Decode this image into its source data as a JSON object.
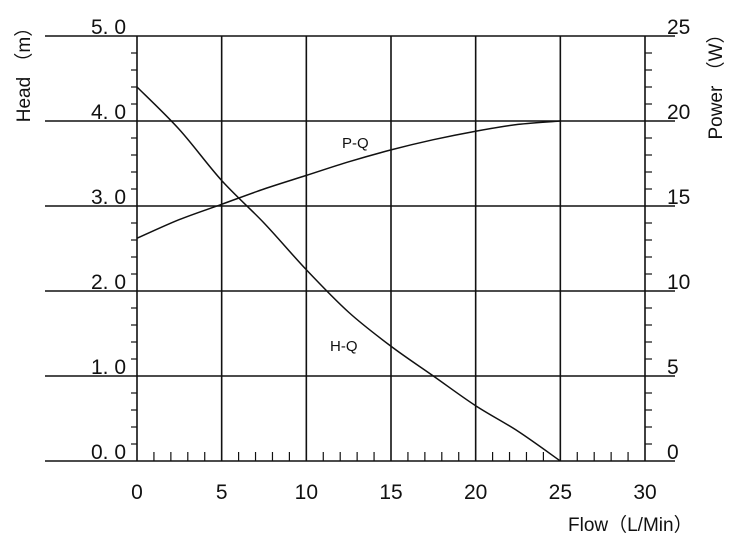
{
  "chart_data": {
    "type": "line",
    "xlabel": "Flow（L/Min）",
    "ylabel_left": "Head （m）",
    "ylabel_right": "Power （W）",
    "xlim": [
      0,
      30
    ],
    "ylim_left": [
      0,
      5
    ],
    "ylim_right": [
      0,
      25
    ],
    "x_ticks": [
      "0",
      "5",
      "10",
      "15",
      "20",
      "25",
      "30"
    ],
    "left_ticks": [
      "0. 0",
      "1. 0",
      "2. 0",
      "3. 0",
      "4. 0",
      "5. 0"
    ],
    "right_ticks": [
      "0",
      "5",
      "10",
      "15",
      "20",
      "25"
    ],
    "grid": true,
    "series": [
      {
        "name": "H-Q",
        "axis": "left",
        "x": [
          0,
          2.5,
          5,
          7.5,
          10,
          12.5,
          15,
          17.5,
          20,
          22.5,
          25
        ],
        "y": [
          4.4,
          3.9,
          3.3,
          2.8,
          2.25,
          1.75,
          1.35,
          1.0,
          0.65,
          0.35,
          0.0
        ]
      },
      {
        "name": "P-Q",
        "axis": "right",
        "x": [
          0,
          2.5,
          5,
          7.5,
          10,
          12.5,
          15,
          17.5,
          20,
          22.5,
          25
        ],
        "y": [
          13.1,
          14.2,
          15.1,
          16.0,
          16.8,
          17.6,
          18.3,
          18.9,
          19.4,
          19.8,
          20.0
        ]
      }
    ]
  }
}
